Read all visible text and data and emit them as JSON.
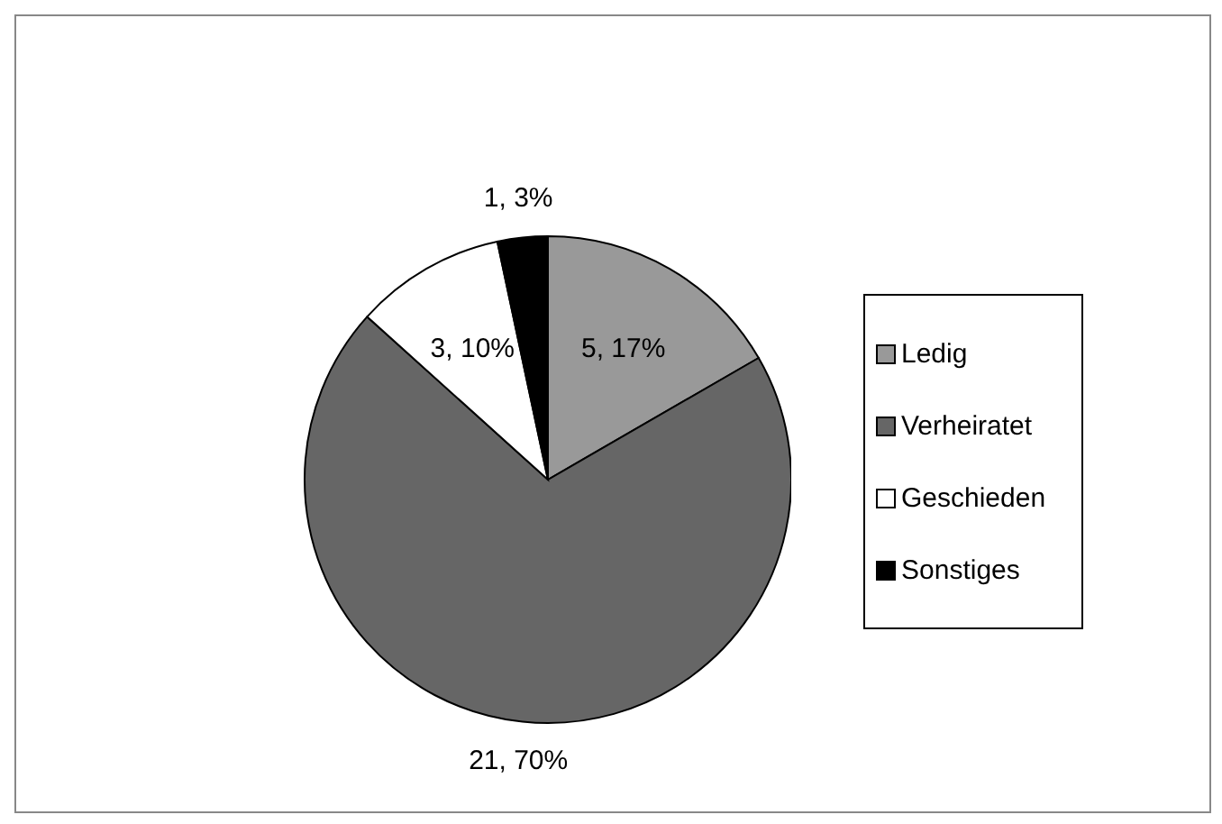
{
  "chart_data": {
    "type": "pie",
    "categories": [
      "Ledig",
      "Verheiratet",
      "Geschieden",
      "Sonstiges"
    ],
    "values": [
      5,
      21,
      3,
      1
    ],
    "colors": [
      "#999999",
      "#666666",
      "#ffffff",
      "#000000"
    ],
    "value_labels": [
      "5, 17%",
      "21, 70%",
      "3, 10%",
      "1, 3%"
    ],
    "legend": "right"
  }
}
